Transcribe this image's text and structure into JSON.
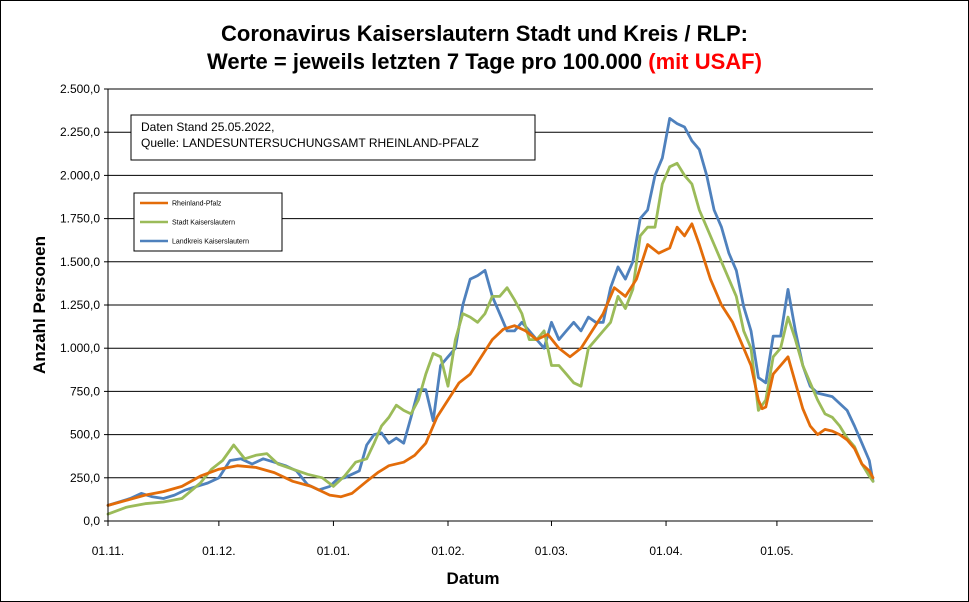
{
  "title": {
    "line1": "Coronavirus Kaiserslautern Stadt und Kreis / RLP:",
    "line2": "Werte = jeweils letzten 7 Tage pro 100.000",
    "line2_red": "(mit USAF)"
  },
  "info_box": {
    "line1": "Daten Stand 25.05.2022,",
    "line2": "Quelle: LANDESUNTERSUCHUNGSAMT RHEINLAND-PFALZ"
  },
  "chart_data": {
    "type": "line",
    "xlabel": "Datum",
    "ylabel": "Anzahl Personen",
    "x_range_days": [
      0,
      207
    ],
    "ylim": [
      0,
      2500
    ],
    "grid": "horizontal",
    "legend_placement": "top-left",
    "x_ticks": [
      {
        "day": 0,
        "label": "01.11."
      },
      {
        "day": 30,
        "label": "01.12."
      },
      {
        "day": 61,
        "label": "01.01."
      },
      {
        "day": 92,
        "label": "01.02."
      },
      {
        "day": 120,
        "label": "01.03."
      },
      {
        "day": 151,
        "label": "01.04."
      },
      {
        "day": 181,
        "label": "01.05."
      }
    ],
    "y_ticks": [
      {
        "value": 0,
        "label": "0,0"
      },
      {
        "value": 250,
        "label": "250,0"
      },
      {
        "value": 500,
        "label": "500,0"
      },
      {
        "value": 750,
        "label": "750,0"
      },
      {
        "value": 1000,
        "label": "1.000,0"
      },
      {
        "value": 1250,
        "label": "1.250,0"
      },
      {
        "value": 1500,
        "label": "1.500,0"
      },
      {
        "value": 1750,
        "label": "1.750,0"
      },
      {
        "value": 2000,
        "label": "2.000,0"
      },
      {
        "value": 2250,
        "label": "2.250,0"
      },
      {
        "value": 2500,
        "label": "2.500,0"
      }
    ],
    "series": [
      {
        "name": "Rheinland-Pfalz",
        "color": "#e36c09",
        "points": [
          [
            0,
            90
          ],
          [
            5,
            120
          ],
          [
            10,
            150
          ],
          [
            15,
            170
          ],
          [
            20,
            200
          ],
          [
            25,
            260
          ],
          [
            30,
            300
          ],
          [
            35,
            320
          ],
          [
            40,
            310
          ],
          [
            45,
            280
          ],
          [
            50,
            230
          ],
          [
            55,
            200
          ],
          [
            60,
            150
          ],
          [
            63,
            140
          ],
          [
            66,
            160
          ],
          [
            70,
            230
          ],
          [
            73,
            280
          ],
          [
            76,
            320
          ],
          [
            80,
            340
          ],
          [
            83,
            380
          ],
          [
            86,
            450
          ],
          [
            89,
            600
          ],
          [
            92,
            700
          ],
          [
            95,
            800
          ],
          [
            98,
            850
          ],
          [
            101,
            950
          ],
          [
            104,
            1050
          ],
          [
            107,
            1110
          ],
          [
            110,
            1130
          ],
          [
            113,
            1100
          ],
          [
            116,
            1050
          ],
          [
            119,
            1080
          ],
          [
            122,
            1000
          ],
          [
            125,
            950
          ],
          [
            128,
            1000
          ],
          [
            131,
            1100
          ],
          [
            134,
            1200
          ],
          [
            137,
            1350
          ],
          [
            140,
            1300
          ],
          [
            143,
            1400
          ],
          [
            146,
            1600
          ],
          [
            149,
            1550
          ],
          [
            152,
            1580
          ],
          [
            154,
            1700
          ],
          [
            156,
            1650
          ],
          [
            158,
            1720
          ],
          [
            160,
            1600
          ],
          [
            163,
            1400
          ],
          [
            166,
            1250
          ],
          [
            169,
            1150
          ],
          [
            172,
            1000
          ],
          [
            174,
            900
          ],
          [
            176,
            700
          ],
          [
            177,
            650
          ],
          [
            178,
            660
          ],
          [
            180,
            850
          ],
          [
            182,
            900
          ],
          [
            184,
            950
          ],
          [
            186,
            800
          ],
          [
            188,
            650
          ],
          [
            190,
            550
          ],
          [
            192,
            500
          ],
          [
            194,
            530
          ],
          [
            196,
            520
          ],
          [
            198,
            500
          ],
          [
            200,
            470
          ],
          [
            202,
            420
          ],
          [
            204,
            330
          ],
          [
            206,
            290
          ],
          [
            207,
            250
          ]
        ]
      },
      {
        "name": "Stadt Kaiserslautern",
        "color": "#9bbb59",
        "points": [
          [
            0,
            40
          ],
          [
            5,
            80
          ],
          [
            10,
            100
          ],
          [
            15,
            110
          ],
          [
            20,
            130
          ],
          [
            25,
            220
          ],
          [
            28,
            300
          ],
          [
            31,
            350
          ],
          [
            34,
            440
          ],
          [
            37,
            360
          ],
          [
            40,
            380
          ],
          [
            43,
            390
          ],
          [
            46,
            330
          ],
          [
            50,
            300
          ],
          [
            54,
            270
          ],
          [
            58,
            250
          ],
          [
            61,
            200
          ],
          [
            64,
            260
          ],
          [
            67,
            340
          ],
          [
            70,
            360
          ],
          [
            72,
            450
          ],
          [
            74,
            550
          ],
          [
            76,
            600
          ],
          [
            78,
            670
          ],
          [
            80,
            640
          ],
          [
            82,
            620
          ],
          [
            84,
            700
          ],
          [
            86,
            850
          ],
          [
            88,
            970
          ],
          [
            90,
            950
          ],
          [
            92,
            780
          ],
          [
            94,
            1050
          ],
          [
            96,
            1200
          ],
          [
            98,
            1180
          ],
          [
            100,
            1150
          ],
          [
            102,
            1200
          ],
          [
            104,
            1300
          ],
          [
            106,
            1300
          ],
          [
            108,
            1350
          ],
          [
            110,
            1280
          ],
          [
            112,
            1200
          ],
          [
            114,
            1050
          ],
          [
            116,
            1050
          ],
          [
            118,
            1100
          ],
          [
            120,
            900
          ],
          [
            122,
            900
          ],
          [
            124,
            850
          ],
          [
            126,
            800
          ],
          [
            128,
            780
          ],
          [
            130,
            1000
          ],
          [
            132,
            1050
          ],
          [
            134,
            1100
          ],
          [
            136,
            1150
          ],
          [
            138,
            1300
          ],
          [
            140,
            1230
          ],
          [
            142,
            1340
          ],
          [
            144,
            1650
          ],
          [
            146,
            1700
          ],
          [
            148,
            1700
          ],
          [
            150,
            1950
          ],
          [
            152,
            2050
          ],
          [
            154,
            2070
          ],
          [
            156,
            2000
          ],
          [
            158,
            1950
          ],
          [
            160,
            1800
          ],
          [
            162,
            1700
          ],
          [
            164,
            1600
          ],
          [
            166,
            1500
          ],
          [
            168,
            1400
          ],
          [
            170,
            1300
          ],
          [
            172,
            1100
          ],
          [
            174,
            1000
          ],
          [
            176,
            640
          ],
          [
            178,
            700
          ],
          [
            180,
            950
          ],
          [
            182,
            1000
          ],
          [
            184,
            1180
          ],
          [
            186,
            1050
          ],
          [
            188,
            900
          ],
          [
            190,
            800
          ],
          [
            192,
            700
          ],
          [
            194,
            620
          ],
          [
            196,
            600
          ],
          [
            198,
            550
          ],
          [
            200,
            480
          ],
          [
            202,
            430
          ],
          [
            204,
            330
          ],
          [
            206,
            260
          ],
          [
            207,
            230
          ]
        ]
      },
      {
        "name": "Landkreis Kaiserslautern",
        "color": "#4f81bd",
        "points": [
          [
            0,
            90
          ],
          [
            3,
            110
          ],
          [
            6,
            130
          ],
          [
            9,
            160
          ],
          [
            12,
            140
          ],
          [
            15,
            130
          ],
          [
            18,
            150
          ],
          [
            21,
            180
          ],
          [
            24,
            200
          ],
          [
            27,
            220
          ],
          [
            30,
            250
          ],
          [
            33,
            350
          ],
          [
            36,
            360
          ],
          [
            39,
            330
          ],
          [
            42,
            360
          ],
          [
            45,
            340
          ],
          [
            48,
            320
          ],
          [
            51,
            290
          ],
          [
            54,
            210
          ],
          [
            57,
            180
          ],
          [
            60,
            200
          ],
          [
            62,
            240
          ],
          [
            64,
            250
          ],
          [
            66,
            270
          ],
          [
            68,
            290
          ],
          [
            70,
            440
          ],
          [
            72,
            500
          ],
          [
            74,
            510
          ],
          [
            76,
            450
          ],
          [
            78,
            480
          ],
          [
            80,
            450
          ],
          [
            82,
            600
          ],
          [
            84,
            760
          ],
          [
            86,
            760
          ],
          [
            88,
            580
          ],
          [
            90,
            900
          ],
          [
            92,
            950
          ],
          [
            94,
            1000
          ],
          [
            96,
            1250
          ],
          [
            98,
            1400
          ],
          [
            100,
            1420
          ],
          [
            102,
            1450
          ],
          [
            104,
            1300
          ],
          [
            106,
            1200
          ],
          [
            108,
            1100
          ],
          [
            110,
            1100
          ],
          [
            112,
            1150
          ],
          [
            114,
            1100
          ],
          [
            116,
            1050
          ],
          [
            118,
            1000
          ],
          [
            120,
            1150
          ],
          [
            122,
            1050
          ],
          [
            124,
            1100
          ],
          [
            126,
            1150
          ],
          [
            128,
            1100
          ],
          [
            130,
            1180
          ],
          [
            132,
            1150
          ],
          [
            134,
            1150
          ],
          [
            136,
            1350
          ],
          [
            138,
            1470
          ],
          [
            140,
            1400
          ],
          [
            142,
            1500
          ],
          [
            144,
            1750
          ],
          [
            146,
            1800
          ],
          [
            148,
            2000
          ],
          [
            150,
            2100
          ],
          [
            152,
            2330
          ],
          [
            154,
            2300
          ],
          [
            156,
            2280
          ],
          [
            158,
            2200
          ],
          [
            160,
            2150
          ],
          [
            162,
            2000
          ],
          [
            164,
            1800
          ],
          [
            166,
            1700
          ],
          [
            168,
            1550
          ],
          [
            170,
            1450
          ],
          [
            172,
            1240
          ],
          [
            174,
            1100
          ],
          [
            176,
            830
          ],
          [
            178,
            800
          ],
          [
            180,
            1070
          ],
          [
            182,
            1070
          ],
          [
            184,
            1340
          ],
          [
            186,
            1100
          ],
          [
            188,
            900
          ],
          [
            190,
            780
          ],
          [
            192,
            740
          ],
          [
            194,
            730
          ],
          [
            196,
            720
          ],
          [
            198,
            680
          ],
          [
            200,
            640
          ],
          [
            202,
            550
          ],
          [
            204,
            450
          ],
          [
            206,
            350
          ],
          [
            207,
            230
          ]
        ]
      }
    ]
  }
}
